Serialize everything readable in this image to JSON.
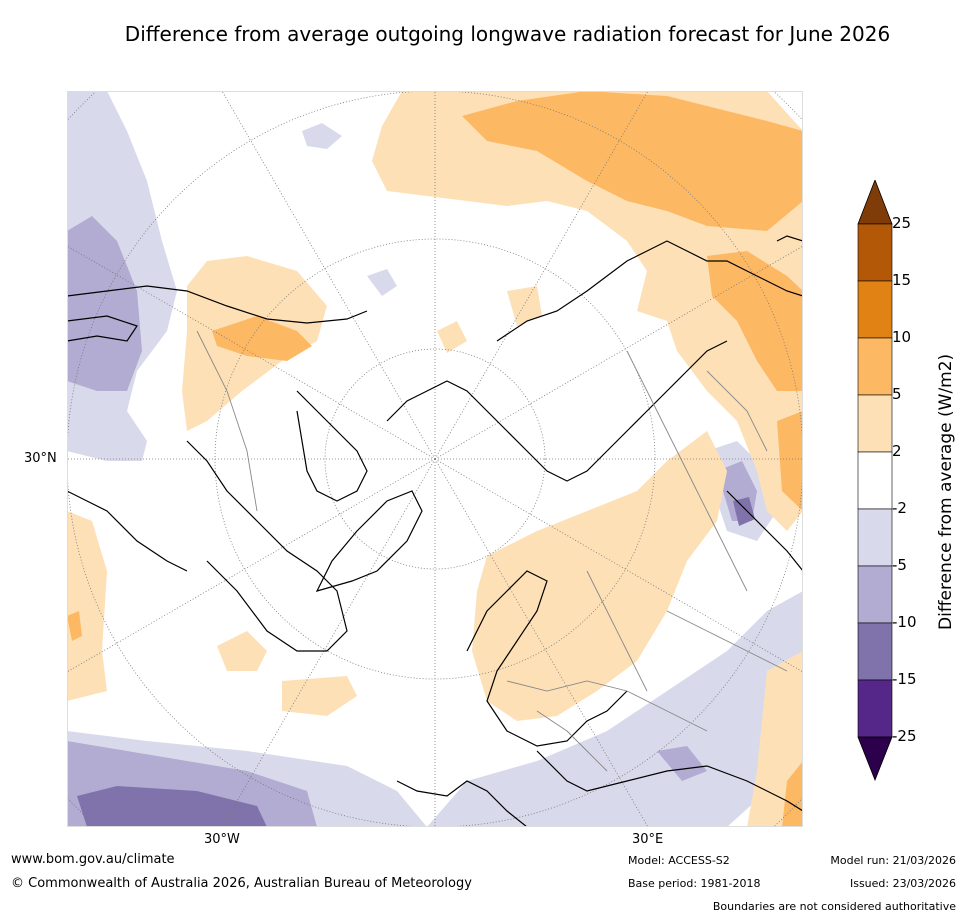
{
  "title": "Difference from average outgoing longwave radiation forecast for June 2026",
  "map": {
    "projection": "north polar stereographic",
    "lat_label": "30°N",
    "lon_labels": [
      "30°W",
      "30°E"
    ]
  },
  "colorbar": {
    "title": "Difference from average (W/m2)",
    "ticks": [
      "25",
      "15",
      "10",
      "5",
      "2",
      "-2",
      "-5",
      "-10",
      "-15",
      "-25"
    ],
    "colors": {
      "above_25": "#7f3b08",
      "15_25": "#b35806",
      "10_15": "#e08214",
      "5_10": "#fdb863",
      "2_5": "#fee0b6",
      "neutral": "#ffffff",
      "m2_m5": "#d8daeb",
      "m5_m10": "#b2abd2",
      "m10_m15": "#8073ac",
      "m15_m25": "#542788",
      "below_m25": "#2d004b"
    }
  },
  "footer": {
    "url": "www.bom.gov.au/climate",
    "copyright": "© Commonwealth of Australia 2026, Australian Bureau of Meteorology",
    "model": "Model: ACCESS-S2",
    "base_period": "Base period: 1981-2018",
    "model_run": "Model run: 21/03/2026",
    "issued": "Issued: 23/03/2026",
    "disclaimer": "Boundaries are not considered authoritative"
  }
}
